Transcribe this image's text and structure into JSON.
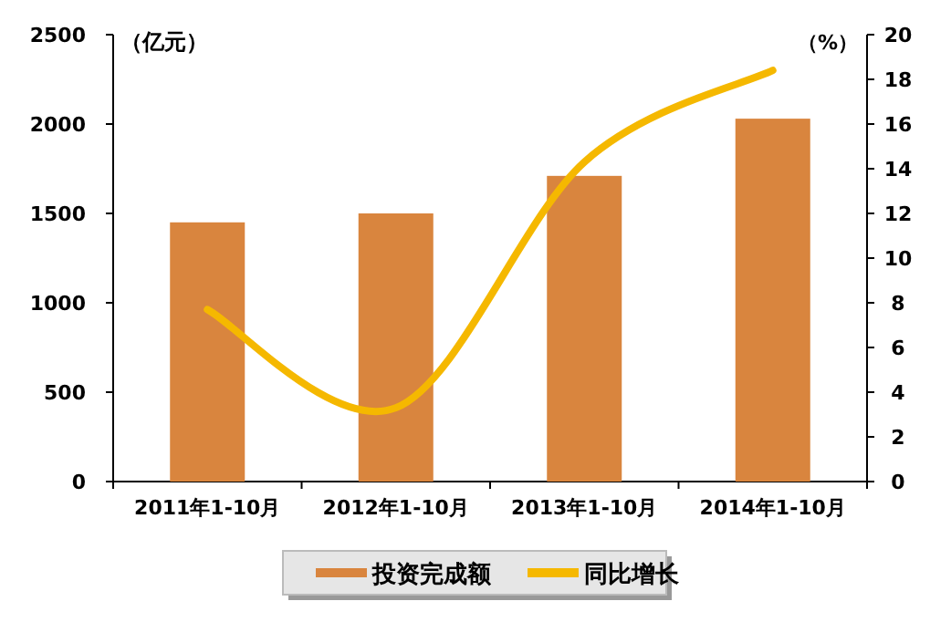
{
  "chart_data": {
    "type": "bar",
    "categories": [
      "2011年1-10月",
      "2012年1-10月",
      "2013年1-10月",
      "2014年1-10月"
    ],
    "series": [
      {
        "name": "投资完成额",
        "color": "#d9853e",
        "values": [
          1450,
          1500,
          1710,
          2030
        ]
      },
      {
        "name": "同比增长",
        "type": "line",
        "axis": "y2",
        "color": "#f5b800",
        "values": [
          7.7,
          3.3,
          14.3,
          18.4
        ]
      }
    ],
    "ylabel": "（亿元）",
    "y2label": "（%）",
    "ylim": [
      0,
      2500
    ],
    "yticks": [
      0,
      500,
      1000,
      1500,
      2000,
      2500
    ],
    "y2lim": [
      0,
      20
    ],
    "y2ticks": [
      0,
      2,
      4,
      6,
      8,
      10,
      12,
      14,
      16,
      18,
      20
    ],
    "grid": false,
    "legend": "bottom",
    "marker": "none"
  }
}
